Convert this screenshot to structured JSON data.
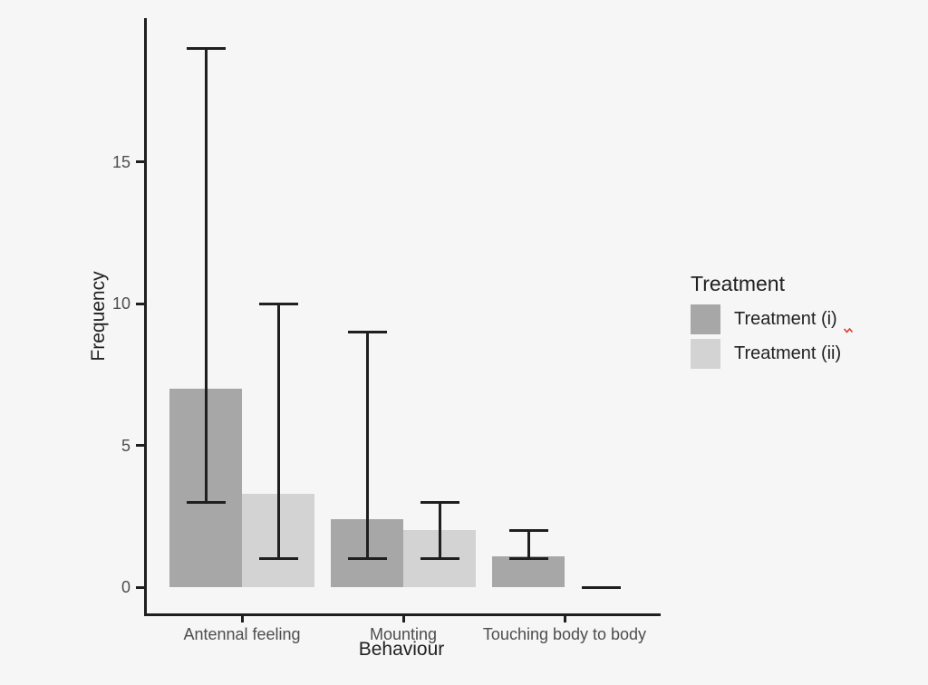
{
  "page": {
    "background": "#f6f6f6"
  },
  "chart_data": {
    "type": "bar",
    "title": "",
    "xlabel": "Behaviour",
    "ylabel": "Frequency",
    "categories": [
      "Antennal feeling",
      "Mounting",
      "Touching body to body"
    ],
    "series": [
      {
        "name": "Treatment (i)",
        "color": "#a7a7a7",
        "values": [
          7.0,
          2.4,
          1.1
        ],
        "error_low": [
          3,
          1,
          1
        ],
        "error_high": [
          19,
          9,
          2
        ]
      },
      {
        "name": "Treatment (ii)",
        "color": "#d3d3d3",
        "values": [
          3.3,
          2.0,
          0.0
        ],
        "error_low": [
          1,
          1,
          0
        ],
        "error_high": [
          10,
          3,
          0
        ]
      }
    ],
    "y_ticks": [
      0,
      5,
      10,
      15
    ],
    "ylim": [
      -1,
      20.1
    ],
    "grid": false,
    "error_bars": true,
    "legend_title": "Treatment",
    "legend_position": "right",
    "style": "ggplot-theme-classic"
  },
  "colors": {
    "axis": "#1f1f1f",
    "tick_text": "#4d4d4d",
    "title_text": "#212121",
    "bar_dark": "#a7a7a7",
    "bar_light": "#d3d3d3",
    "spellcheck_red": "#e23b28"
  }
}
